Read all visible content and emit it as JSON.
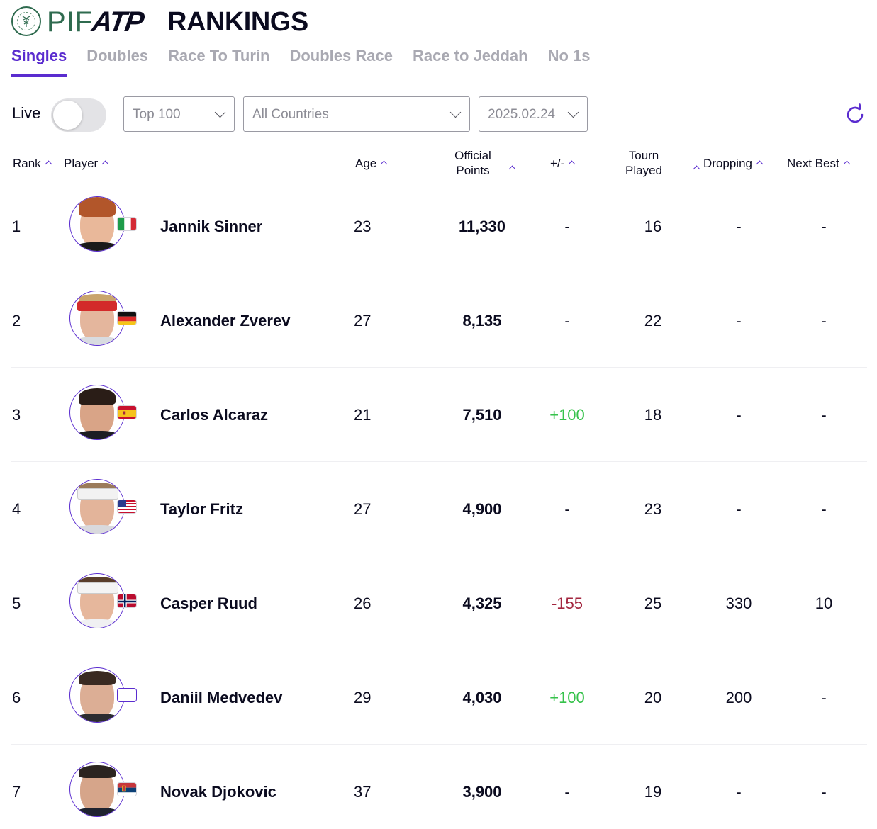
{
  "header": {
    "brand_pif": "PIF",
    "brand_atp": "ATP",
    "title": "RANKINGS"
  },
  "tabs": [
    {
      "label": "Singles",
      "active": true
    },
    {
      "label": "Doubles",
      "active": false
    },
    {
      "label": "Race To Turin",
      "active": false
    },
    {
      "label": "Doubles Race",
      "active": false
    },
    {
      "label": "Race to Jeddah",
      "active": false
    },
    {
      "label": "No 1s",
      "active": false
    }
  ],
  "filters": {
    "live_label": "Live",
    "live_on": false,
    "range": "Top 100",
    "country": "All Countries",
    "date": "2025.02.24"
  },
  "columns": {
    "rank": "Rank",
    "player": "Player",
    "age": "Age",
    "points_line1": "Official",
    "points_line2": "Points",
    "delta": "+/-",
    "tourn_line1": "Tourn",
    "tourn_line2": "Played",
    "dropping": "Dropping",
    "next_best": "Next Best"
  },
  "colors": {
    "accent": "#5a2ccf",
    "positive": "#36c24b",
    "negative": "#a3263f"
  },
  "rows": [
    {
      "rank": "1",
      "name": "Jannik Sinner",
      "flag": "italy-flag",
      "age": "23",
      "points": "11,330",
      "delta": "-",
      "tourn": "16",
      "dropping": "-",
      "next_best": "-"
    },
    {
      "rank": "2",
      "name": "Alexander Zverev",
      "flag": "germany-flag",
      "age": "27",
      "points": "8,135",
      "delta": "-",
      "tourn": "22",
      "dropping": "-",
      "next_best": "-"
    },
    {
      "rank": "3",
      "name": "Carlos Alcaraz",
      "flag": "spain-flag",
      "age": "21",
      "points": "7,510",
      "delta": "+100",
      "tourn": "18",
      "dropping": "-",
      "next_best": "-"
    },
    {
      "rank": "4",
      "name": "Taylor Fritz",
      "flag": "usa-flag",
      "age": "27",
      "points": "4,900",
      "delta": "-",
      "tourn": "23",
      "dropping": "-",
      "next_best": "-"
    },
    {
      "rank": "5",
      "name": "Casper Ruud",
      "flag": "norway-flag",
      "age": "26",
      "points": "4,325",
      "delta": "-155",
      "tourn": "25",
      "dropping": "330",
      "next_best": "10"
    },
    {
      "rank": "6",
      "name": "Daniil Medvedev",
      "flag": "neutral-flag",
      "age": "29",
      "points": "4,030",
      "delta": "+100",
      "tourn": "20",
      "dropping": "200",
      "next_best": "-"
    },
    {
      "rank": "7",
      "name": "Novak Djokovic",
      "flag": "serbia-flag",
      "age": "37",
      "points": "3,900",
      "delta": "-",
      "tourn": "19",
      "dropping": "-",
      "next_best": "-"
    }
  ]
}
